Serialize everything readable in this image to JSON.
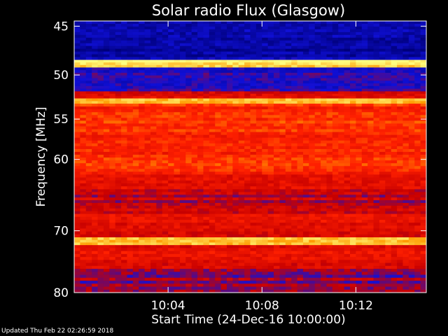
{
  "chart_data": {
    "type": "heatmap",
    "title": "Solar radio Flux (Glasgow)",
    "xlabel": "Start Time (24-Dec-16 10:00:00)",
    "ylabel": "Frequency [MHz]",
    "x_range_minutes": [
      0,
      15
    ],
    "y_range_mhz": [
      44.5,
      80
    ],
    "y_scale": "log",
    "x_tick_labels": [
      "10:04",
      "10:08",
      "10:12"
    ],
    "x_tick_minutes": [
      4,
      8,
      12
    ],
    "y_tick_labels": [
      "45",
      "50",
      "55",
      "60",
      "70",
      "80"
    ],
    "y_tick_values": [
      45,
      50,
      55,
      60,
      70,
      80
    ],
    "colormap": [
      "#00007a",
      "#1010d8",
      "#c80000",
      "#ff2000",
      "#ff9a00",
      "#ffff80"
    ],
    "frequency_bands": [
      {
        "from": 44.5,
        "to": 48.4,
        "level": 0.1
      },
      {
        "from": 48.4,
        "to": 49.2,
        "level": 0.95
      },
      {
        "from": 49.2,
        "to": 51.8,
        "level": 0.18
      },
      {
        "from": 51.8,
        "to": 52.6,
        "level": 0.45
      },
      {
        "from": 52.6,
        "to": 53.2,
        "level": 0.85
      },
      {
        "from": 53.2,
        "to": 62.0,
        "level": 0.62
      },
      {
        "from": 62.0,
        "to": 64.0,
        "level": 0.52
      },
      {
        "from": 64.0,
        "to": 67.5,
        "level": 0.4
      },
      {
        "from": 67.5,
        "to": 71.0,
        "level": 0.5
      },
      {
        "from": 71.0,
        "to": 72.2,
        "level": 0.92
      },
      {
        "from": 72.2,
        "to": 76.0,
        "level": 0.5
      },
      {
        "from": 76.0,
        "to": 80.0,
        "level": 0.33
      }
    ]
  },
  "footer": {
    "updated": "Updated Thu Feb 22 02:26:59 2018"
  }
}
